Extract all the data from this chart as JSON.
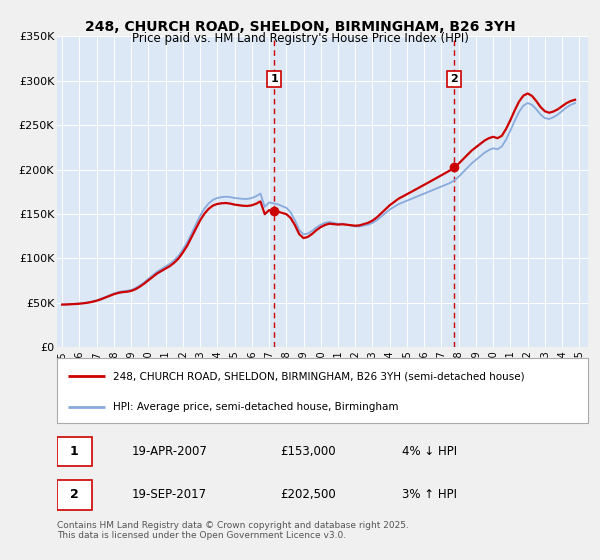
{
  "title": "248, CHURCH ROAD, SHELDON, BIRMINGHAM, B26 3YH",
  "subtitle": "Price paid vs. HM Land Registry's House Price Index (HPI)",
  "line1_label": "248, CHURCH ROAD, SHELDON, BIRMINGHAM, B26 3YH (semi-detached house)",
  "line2_label": "HPI: Average price, semi-detached house, Birmingham",
  "line1_color": "#cc0000",
  "line2_color": "#88aadd",
  "bg_color": "#dce8f5",
  "fig_bg": "#f0f0f0",
  "legend_bg": "#ffffff",
  "ylim": [
    0,
    350000
  ],
  "yticks": [
    0,
    50000,
    100000,
    150000,
    200000,
    250000,
    300000,
    350000
  ],
  "ytick_labels": [
    "£0",
    "£50K",
    "£100K",
    "£150K",
    "£200K",
    "£250K",
    "£300K",
    "£350K"
  ],
  "sale1_date": 2007.3,
  "sale1_price": 153000,
  "sale1_label": "1",
  "sale2_date": 2017.72,
  "sale2_price": 202500,
  "sale2_label": "2",
  "footer": "Contains HM Land Registry data © Crown copyright and database right 2025.\nThis data is licensed under the Open Government Licence v3.0.",
  "table_rows": [
    {
      "num": "1",
      "date": "19-APR-2007",
      "price": "£153,000",
      "hpi": "4% ↓ HPI"
    },
    {
      "num": "2",
      "date": "19-SEP-2017",
      "price": "£202,500",
      "hpi": "3% ↑ HPI"
    }
  ],
  "hpi_data": {
    "years": [
      1995.0,
      1995.25,
      1995.5,
      1995.75,
      1996.0,
      1996.25,
      1996.5,
      1996.75,
      1997.0,
      1997.25,
      1997.5,
      1997.75,
      1998.0,
      1998.25,
      1998.5,
      1998.75,
      1999.0,
      1999.25,
      1999.5,
      1999.75,
      2000.0,
      2000.25,
      2000.5,
      2000.75,
      2001.0,
      2001.25,
      2001.5,
      2001.75,
      2002.0,
      2002.25,
      2002.5,
      2002.75,
      2003.0,
      2003.25,
      2003.5,
      2003.75,
      2004.0,
      2004.25,
      2004.5,
      2004.75,
      2005.0,
      2005.25,
      2005.5,
      2005.75,
      2006.0,
      2006.25,
      2006.5,
      2006.75,
      2007.0,
      2007.25,
      2007.5,
      2007.75,
      2008.0,
      2008.25,
      2008.5,
      2008.75,
      2009.0,
      2009.25,
      2009.5,
      2009.75,
      2010.0,
      2010.25,
      2010.5,
      2010.75,
      2011.0,
      2011.25,
      2011.5,
      2011.75,
      2012.0,
      2012.25,
      2012.5,
      2012.75,
      2013.0,
      2013.25,
      2013.5,
      2013.75,
      2014.0,
      2014.25,
      2014.5,
      2014.75,
      2015.0,
      2015.25,
      2015.5,
      2015.75,
      2016.0,
      2016.25,
      2016.5,
      2016.75,
      2017.0,
      2017.25,
      2017.5,
      2017.75,
      2018.0,
      2018.25,
      2018.5,
      2018.75,
      2019.0,
      2019.25,
      2019.5,
      2019.75,
      2020.0,
      2020.25,
      2020.5,
      2020.75,
      2021.0,
      2021.25,
      2021.5,
      2021.75,
      2022.0,
      2022.25,
      2022.5,
      2022.75,
      2023.0,
      2023.25,
      2023.5,
      2023.75,
      2024.0,
      2024.25,
      2024.5,
      2024.75
    ],
    "values": [
      48000,
      48200,
      48500,
      48800,
      49200,
      49800,
      50500,
      51500,
      52800,
      54500,
      56500,
      58500,
      60500,
      62000,
      63000,
      63500,
      64500,
      66500,
      69500,
      73000,
      77000,
      81000,
      85000,
      88000,
      91000,
      94000,
      98000,
      103000,
      110000,
      118000,
      128000,
      138000,
      148000,
      156000,
      162000,
      166000,
      168000,
      169000,
      169500,
      169000,
      168000,
      167500,
      167000,
      167000,
      168000,
      170000,
      173000,
      158000,
      163000,
      162000,
      161000,
      159000,
      157000,
      152000,
      143000,
      132000,
      127000,
      128000,
      131000,
      135000,
      138000,
      140000,
      141000,
      140000,
      139000,
      139000,
      138000,
      137000,
      136000,
      136000,
      137000,
      138000,
      140000,
      143000,
      147000,
      151000,
      155000,
      158000,
      161000,
      163000,
      165000,
      167000,
      169000,
      171000,
      173000,
      175000,
      177000,
      179000,
      181000,
      183000,
      185000,
      188000,
      192000,
      197000,
      202000,
      207000,
      211000,
      215000,
      219000,
      222000,
      224000,
      223000,
      226000,
      234000,
      244000,
      255000,
      265000,
      272000,
      275000,
      273000,
      268000,
      262000,
      258000,
      257000,
      259000,
      262000,
      266000,
      270000,
      273000,
      275000
    ]
  },
  "price_data": {
    "years": [
      1995.0,
      2007.3,
      2017.72,
      2025.0
    ],
    "values": [
      48000,
      153000,
      202500,
      278000
    ]
  }
}
